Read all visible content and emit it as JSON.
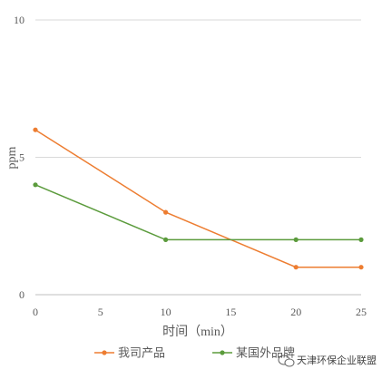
{
  "chart_data": {
    "type": "line",
    "x": [
      0,
      10,
      20,
      25
    ],
    "xticks": [
      0,
      5,
      10,
      15,
      20,
      25
    ],
    "yticks": [
      0,
      5,
      10
    ],
    "xlim": [
      0,
      25
    ],
    "ylim": [
      0,
      10
    ],
    "xlabel": "时间（min）",
    "ylabel": "ppm",
    "grid": "horizontal",
    "legend_position": "bottom",
    "series": [
      {
        "name": "我司产品",
        "color": "#ED7D31",
        "values": [
          6,
          3,
          1,
          1
        ]
      },
      {
        "name": "某国外品牌",
        "color": "#5B9B3C",
        "values": [
          4,
          2,
          2,
          2
        ]
      }
    ]
  },
  "watermark": {
    "text": "天津环保企业联盟",
    "icon": "wechat-icon"
  }
}
